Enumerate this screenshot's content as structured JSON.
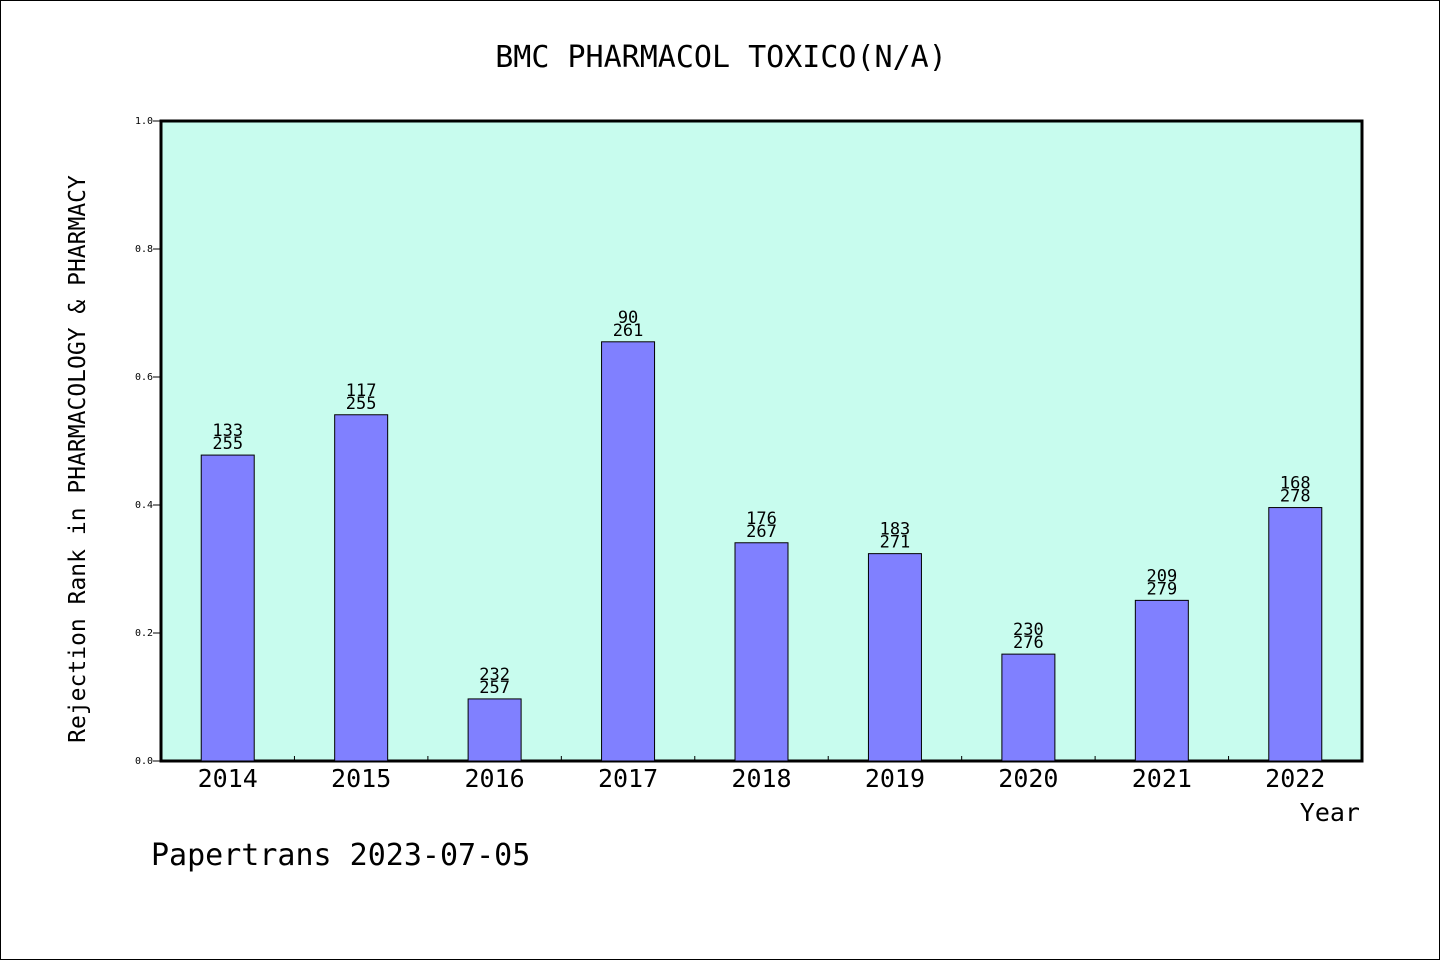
{
  "chart_data": {
    "type": "bar",
    "title": "BMC PHARMACOL TOXICO(N/A)",
    "xlabel": "Year",
    "ylabel": "Rejection Rank in PHARMACOLOGY & PHARMACY",
    "ylim": [
      0,
      1.0
    ],
    "yticks": [
      "0.0",
      "0.2",
      "0.4",
      "0.6",
      "0.8",
      "1.0"
    ],
    "categories": [
      "2014",
      "2015",
      "2016",
      "2017",
      "2018",
      "2019",
      "2020",
      "2021",
      "2022"
    ],
    "values": [
      0.478,
      0.541,
      0.097,
      0.655,
      0.341,
      0.324,
      0.167,
      0.251,
      0.396
    ],
    "labels_top": [
      "133",
      "117",
      "232",
      "90",
      "176",
      "183",
      "230",
      "209",
      "168"
    ],
    "labels_bottom": [
      "255",
      "255",
      "257",
      "261",
      "267",
      "271",
      "276",
      "279",
      "278"
    ],
    "grid": false,
    "plot_background": "#c8fcee",
    "bar_color": "#8080ff"
  },
  "footer": "Papertrans 2023-07-05"
}
